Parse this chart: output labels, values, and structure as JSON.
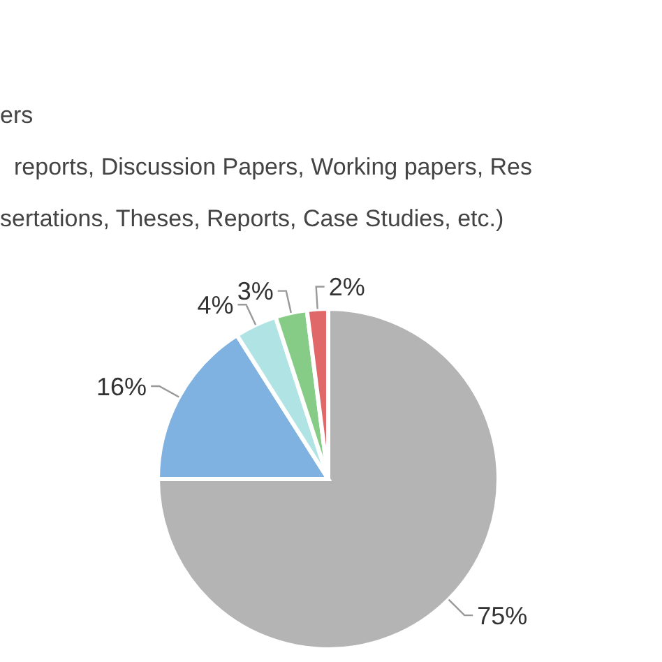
{
  "chart_data": {
    "type": "pie",
    "categories": [
      null,
      null,
      null,
      null,
      null
    ],
    "values": [
      75,
      16,
      4,
      3,
      2
    ],
    "colors": [
      "#b4b4b4",
      "#7fb2e0",
      "#b0e4e4",
      "#86cc86",
      "#e06868"
    ],
    "value_labels": [
      "75%",
      "16%",
      "4%",
      "3%",
      "2%"
    ],
    "annotations": [
      "ers",
      "reports, Discussion Papers, Working papers, Res",
      "sertations, Theses, Reports, Case Studies, etc.)"
    ]
  }
}
